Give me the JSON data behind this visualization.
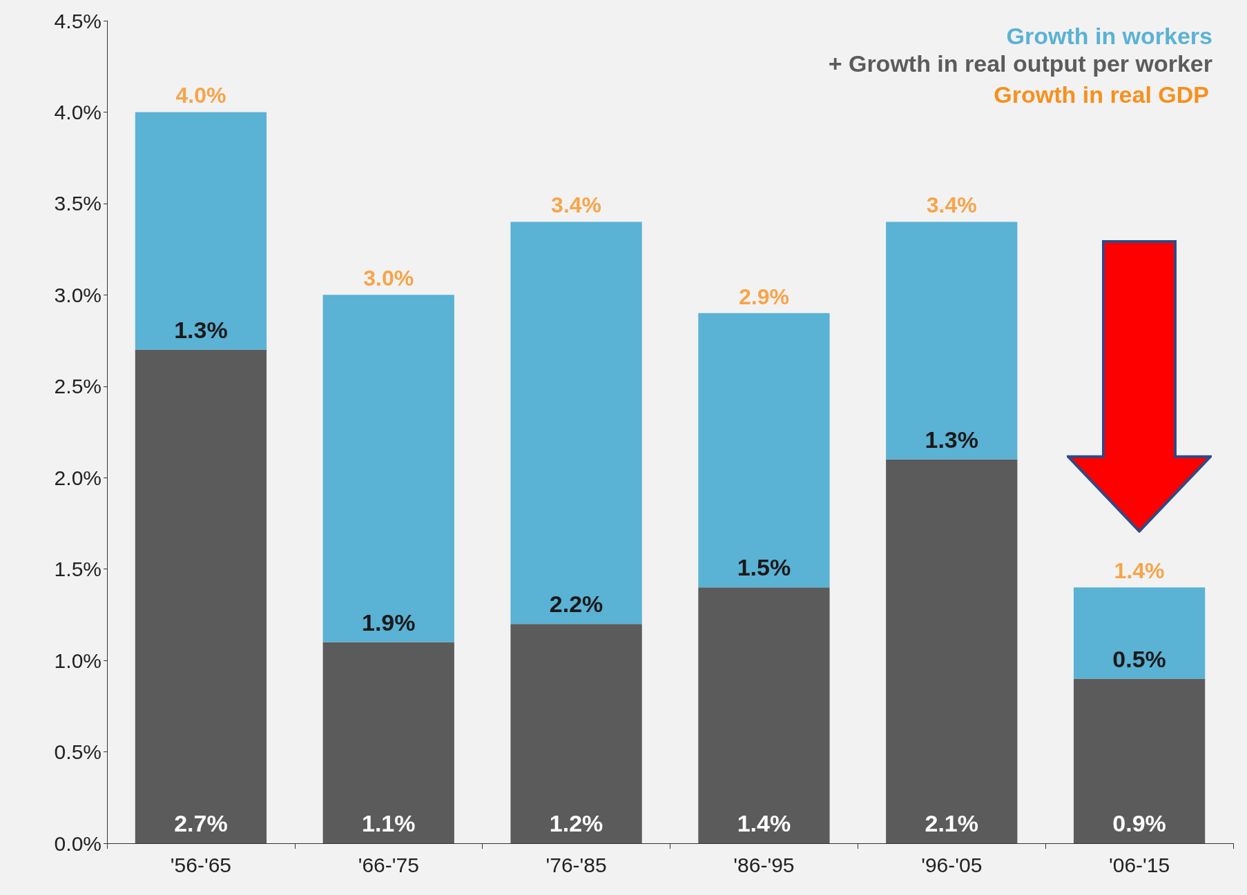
{
  "chart_data": {
    "type": "bar",
    "stacked": true,
    "categories": [
      "'56-'65",
      "'66-'75",
      "'76-'85",
      "'86-'95",
      "'96-'05",
      "'06-'15"
    ],
    "series": [
      {
        "name": "+ Growth in real output per worker",
        "color": "#5b5b5b",
        "values": [
          2.7,
          1.1,
          1.2,
          1.4,
          2.1,
          0.9
        ],
        "value_labels": [
          "2.7%",
          "1.1%",
          "1.2%",
          "1.4%",
          "2.1%",
          "0.9%"
        ]
      },
      {
        "name": "Growth in workers",
        "color": "#5ab2d4",
        "values": [
          1.3,
          1.9,
          2.2,
          1.5,
          1.3,
          0.5
        ],
        "value_labels": [
          "1.3%",
          "1.9%",
          "2.2%",
          "1.5%",
          "1.3%",
          "0.5%"
        ]
      }
    ],
    "totals": [
      "4.0%",
      "3.0%",
      "3.4%",
      "2.9%",
      "3.4%",
      "1.4%"
    ],
    "annotations": [
      "Growth in real GDP"
    ],
    "ylim": [
      0,
      4.5
    ],
    "yticks": [
      {
        "value": 0,
        "label": "0.0%"
      },
      {
        "value": 0.5,
        "label": "0.5%"
      },
      {
        "value": 1,
        "label": "1.0%"
      },
      {
        "value": 1.5,
        "label": "1.5%"
      },
      {
        "value": 2,
        "label": "2.0%"
      },
      {
        "value": 2.5,
        "label": "2.5%"
      },
      {
        "value": 3,
        "label": "3.0%"
      },
      {
        "value": 3.5,
        "label": "3.5%"
      },
      {
        "value": 4,
        "label": "4.0%"
      },
      {
        "value": 4.5,
        "label": "4.5%"
      }
    ],
    "grid": false,
    "legend": "top right"
  }
}
